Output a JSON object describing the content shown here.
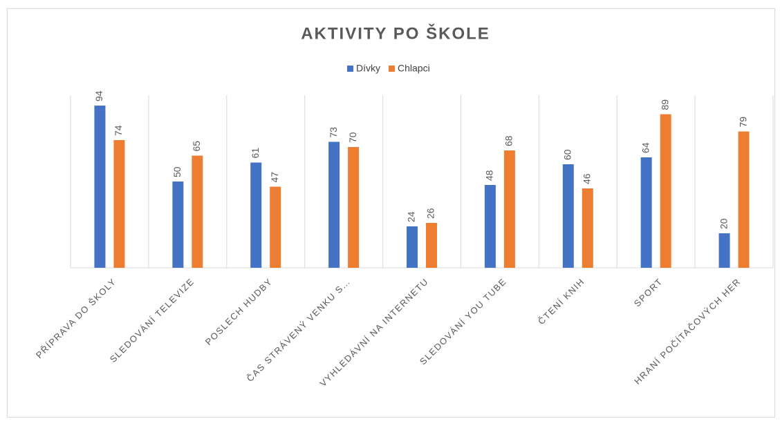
{
  "chart_data": {
    "type": "bar",
    "title": "AKTIVITY PO ŠKOLE",
    "categories": [
      "PŘÍPRAVA DO ŠKOLY",
      "SLEDOVÁNÍ TELEVIZE",
      "POSLECH HUDBY",
      "ČAS STRÁVENÝ VENKU S…",
      "VYHLEDÁVNÍ NA INTERNETU",
      "SLEDOVÁNÍ YOU TUBE",
      "ČTENÍ KNIH",
      "SPORT",
      "HRANÍ POČÍTAČOVÝCH HER"
    ],
    "series": [
      {
        "name": "Dívky",
        "color": "#4472c4",
        "values": [
          94,
          50,
          61,
          73,
          24,
          48,
          60,
          64,
          20
        ]
      },
      {
        "name": "Chlapci",
        "color": "#ed7d31",
        "values": [
          74,
          65,
          47,
          70,
          26,
          68,
          46,
          89,
          79
        ]
      }
    ],
    "ylim": [
      0,
      100
    ],
    "legend": "top"
  }
}
